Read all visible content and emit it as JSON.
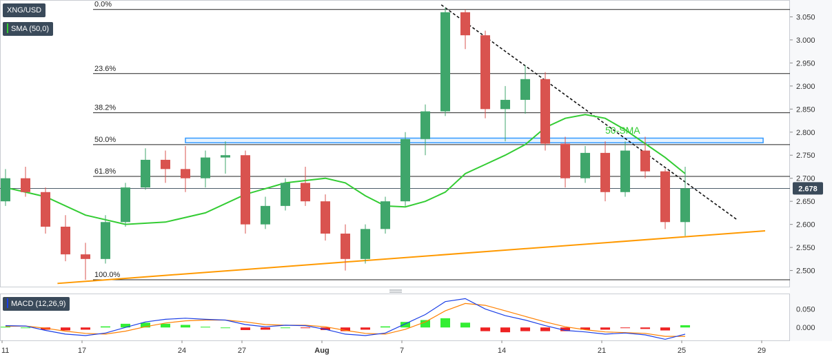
{
  "chart_data": {
    "type": "candlestick",
    "title": "",
    "symbol": "XNG/USD",
    "indicator_label": "SMA (50,0)",
    "macd_label": "MACD (12,26,9)",
    "current_price_label": "2.678",
    "current_price": 2.678,
    "sma_annotation": "50-SMA",
    "colors": {
      "up": "#3fa66b",
      "down": "#d9534f",
      "sma": "#33cc33",
      "support": "#ff9900",
      "resistance_line": "#111111",
      "zone": "#3399ff",
      "macd_line": "#1a3ee6",
      "signal_line": "#ff8000",
      "hist_pos": "#33ee33",
      "hist_neg": "#ee2222"
    },
    "price_axis": {
      "range": [
        2.465,
        3.085
      ],
      "ticks": [
        "3.050",
        "3.000",
        "2.950",
        "2.900",
        "2.850",
        "2.800",
        "2.750",
        "2.700",
        "2.650",
        "2.600",
        "2.550",
        "2.500"
      ]
    },
    "macd_axis": {
      "range": [
        -0.035,
        0.09
      ],
      "ticks": [
        "0.050",
        "0.000"
      ]
    },
    "x_axis": {
      "ticks": [
        {
          "label": "11",
          "x": 0
        },
        {
          "label": "17",
          "x": 4
        },
        {
          "label": "24",
          "x": 9
        },
        {
          "label": "27",
          "x": 12
        },
        {
          "label": "Aug",
          "x": 16
        },
        {
          "label": "7",
          "x": 20
        },
        {
          "label": "14",
          "x": 25
        },
        {
          "label": "21",
          "x": 30
        },
        {
          "label": "25",
          "x": 34
        },
        {
          "label": "29",
          "x": 38
        }
      ]
    },
    "fibonacci": [
      {
        "label": "0.0%",
        "value": 3.066
      },
      {
        "label": "23.6%",
        "value": 2.927
      },
      {
        "label": "38.2%",
        "value": 2.842
      },
      {
        "label": "50.0%",
        "value": 2.773
      },
      {
        "label": "61.8%",
        "value": 2.704
      },
      {
        "label": "100.0%",
        "value": 2.48
      }
    ],
    "zone": {
      "from": 2.777,
      "to": 2.787,
      "x_start": 9,
      "x_end": 37.9
    },
    "resistance_line": [
      {
        "x": 21.8,
        "y": 3.076
      },
      {
        "x": 36.6,
        "y": 2.61
      }
    ],
    "support_line": [
      {
        "x": 2.6,
        "y": 2.472
      },
      {
        "x": 38,
        "y": 2.586
      }
    ],
    "candles": [
      {
        "x": 0,
        "o": 2.65,
        "h": 2.72,
        "l": 2.64,
        "c": 2.7
      },
      {
        "x": 1,
        "o": 2.7,
        "h": 2.725,
        "l": 2.66,
        "c": 2.67
      },
      {
        "x": 2,
        "o": 2.67,
        "h": 2.68,
        "l": 2.58,
        "c": 2.595
      },
      {
        "x": 3,
        "o": 2.595,
        "h": 2.62,
        "l": 2.52,
        "c": 2.535
      },
      {
        "x": 4,
        "o": 2.535,
        "h": 2.56,
        "l": 2.48,
        "c": 2.525
      },
      {
        "x": 5,
        "o": 2.525,
        "h": 2.62,
        "l": 2.515,
        "c": 2.605
      },
      {
        "x": 6,
        "o": 2.605,
        "h": 2.69,
        "l": 2.595,
        "c": 2.68
      },
      {
        "x": 7,
        "o": 2.68,
        "h": 2.765,
        "l": 2.675,
        "c": 2.74
      },
      {
        "x": 8,
        "o": 2.74,
        "h": 2.76,
        "l": 2.69,
        "c": 2.72
      },
      {
        "x": 9,
        "o": 2.72,
        "h": 2.77,
        "l": 2.67,
        "c": 2.7
      },
      {
        "x": 10,
        "o": 2.7,
        "h": 2.76,
        "l": 2.68,
        "c": 2.745
      },
      {
        "x": 11,
        "o": 2.745,
        "h": 2.78,
        "l": 2.71,
        "c": 2.75
      },
      {
        "x": 12,
        "o": 2.75,
        "h": 2.76,
        "l": 2.58,
        "c": 2.6
      },
      {
        "x": 13,
        "o": 2.6,
        "h": 2.66,
        "l": 2.59,
        "c": 2.64
      },
      {
        "x": 14,
        "o": 2.64,
        "h": 2.7,
        "l": 2.63,
        "c": 2.69
      },
      {
        "x": 15,
        "o": 2.69,
        "h": 2.725,
        "l": 2.64,
        "c": 2.65
      },
      {
        "x": 16,
        "o": 2.65,
        "h": 2.665,
        "l": 2.565,
        "c": 2.58
      },
      {
        "x": 17,
        "o": 2.58,
        "h": 2.6,
        "l": 2.5,
        "c": 2.525
      },
      {
        "x": 18,
        "o": 2.525,
        "h": 2.6,
        "l": 2.515,
        "c": 2.59
      },
      {
        "x": 19,
        "o": 2.59,
        "h": 2.66,
        "l": 2.58,
        "c": 2.65
      },
      {
        "x": 20,
        "o": 2.65,
        "h": 2.8,
        "l": 2.64,
        "c": 2.785
      },
      {
        "x": 21,
        "o": 2.785,
        "h": 2.86,
        "l": 2.75,
        "c": 2.845
      },
      {
        "x": 22,
        "o": 2.845,
        "h": 3.07,
        "l": 2.835,
        "c": 3.06
      },
      {
        "x": 23,
        "o": 3.06,
        "h": 3.066,
        "l": 2.98,
        "c": 3.01
      },
      {
        "x": 24,
        "o": 3.01,
        "h": 3.02,
        "l": 2.83,
        "c": 2.85
      },
      {
        "x": 25,
        "o": 2.85,
        "h": 2.9,
        "l": 2.78,
        "c": 2.87
      },
      {
        "x": 26,
        "o": 2.87,
        "h": 2.945,
        "l": 2.84,
        "c": 2.915
      },
      {
        "x": 27,
        "o": 2.915,
        "h": 2.93,
        "l": 2.76,
        "c": 2.775
      },
      {
        "x": 28,
        "o": 2.775,
        "h": 2.79,
        "l": 2.68,
        "c": 2.7
      },
      {
        "x": 29,
        "o": 2.7,
        "h": 2.77,
        "l": 2.69,
        "c": 2.755
      },
      {
        "x": 30,
        "o": 2.755,
        "h": 2.78,
        "l": 2.65,
        "c": 2.67
      },
      {
        "x": 31,
        "o": 2.67,
        "h": 2.78,
        "l": 2.66,
        "c": 2.76
      },
      {
        "x": 32,
        "o": 2.76,
        "h": 2.79,
        "l": 2.7,
        "c": 2.715
      },
      {
        "x": 33,
        "o": 2.715,
        "h": 2.72,
        "l": 2.59,
        "c": 2.605
      },
      {
        "x": 34,
        "o": 2.605,
        "h": 2.725,
        "l": 2.575,
        "c": 2.678
      }
    ],
    "sma": [
      {
        "x": 0,
        "y": 2.68
      },
      {
        "x": 2,
        "y": 2.66
      },
      {
        "x": 4,
        "y": 2.62
      },
      {
        "x": 6,
        "y": 2.6
      },
      {
        "x": 8,
        "y": 2.605
      },
      {
        "x": 10,
        "y": 2.625
      },
      {
        "x": 12,
        "y": 2.665
      },
      {
        "x": 14,
        "y": 2.69
      },
      {
        "x": 16,
        "y": 2.7
      },
      {
        "x": 17,
        "y": 2.69
      },
      {
        "x": 18,
        "y": 2.662
      },
      {
        "x": 19,
        "y": 2.64
      },
      {
        "x": 20,
        "y": 2.638
      },
      {
        "x": 21,
        "y": 2.65
      },
      {
        "x": 22,
        "y": 2.67
      },
      {
        "x": 23,
        "y": 2.71
      },
      {
        "x": 24,
        "y": 2.73
      },
      {
        "x": 25,
        "y": 2.75
      },
      {
        "x": 26,
        "y": 2.773
      },
      {
        "x": 27,
        "y": 2.81
      },
      {
        "x": 28,
        "y": 2.83
      },
      {
        "x": 29,
        "y": 2.838
      },
      {
        "x": 30,
        "y": 2.83
      },
      {
        "x": 31,
        "y": 2.805
      },
      {
        "x": 32,
        "y": 2.775
      },
      {
        "x": 33,
        "y": 2.745
      },
      {
        "x": 34,
        "y": 2.71
      }
    ],
    "macd": [
      {
        "x": 0,
        "y": 0.005
      },
      {
        "x": 1,
        "y": 0.004
      },
      {
        "x": 2,
        "y": -0.008
      },
      {
        "x": 3,
        "y": -0.018
      },
      {
        "x": 4,
        "y": -0.022
      },
      {
        "x": 5,
        "y": -0.015
      },
      {
        "x": 6,
        "y": 0.0
      },
      {
        "x": 7,
        "y": 0.015
      },
      {
        "x": 8,
        "y": 0.022
      },
      {
        "x": 9,
        "y": 0.025
      },
      {
        "x": 10,
        "y": 0.022
      },
      {
        "x": 11,
        "y": 0.02
      },
      {
        "x": 12,
        "y": 0.008
      },
      {
        "x": 13,
        "y": 0.002
      },
      {
        "x": 14,
        "y": 0.006
      },
      {
        "x": 15,
        "y": 0.005
      },
      {
        "x": 16,
        "y": -0.005
      },
      {
        "x": 17,
        "y": -0.018
      },
      {
        "x": 18,
        "y": -0.022
      },
      {
        "x": 19,
        "y": -0.015
      },
      {
        "x": 20,
        "y": 0.01
      },
      {
        "x": 21,
        "y": 0.035
      },
      {
        "x": 22,
        "y": 0.07
      },
      {
        "x": 23,
        "y": 0.078
      },
      {
        "x": 24,
        "y": 0.05
      },
      {
        "x": 25,
        "y": 0.032
      },
      {
        "x": 26,
        "y": 0.02
      },
      {
        "x": 27,
        "y": 0.005
      },
      {
        "x": 28,
        "y": -0.008
      },
      {
        "x": 29,
        "y": -0.012
      },
      {
        "x": 30,
        "y": -0.018
      },
      {
        "x": 31,
        "y": -0.015
      },
      {
        "x": 32,
        "y": -0.02
      },
      {
        "x": 33,
        "y": -0.032
      },
      {
        "x": 34,
        "y": -0.018
      }
    ],
    "signal": [
      {
        "x": 0,
        "y": 0.003
      },
      {
        "x": 1,
        "y": 0.004
      },
      {
        "x": 2,
        "y": -0.002
      },
      {
        "x": 3,
        "y": -0.01
      },
      {
        "x": 4,
        "y": -0.016
      },
      {
        "x": 5,
        "y": -0.018
      },
      {
        "x": 6,
        "y": -0.01
      },
      {
        "x": 7,
        "y": 0.002
      },
      {
        "x": 8,
        "y": 0.012
      },
      {
        "x": 9,
        "y": 0.018
      },
      {
        "x": 10,
        "y": 0.02
      },
      {
        "x": 11,
        "y": 0.02
      },
      {
        "x": 12,
        "y": 0.015
      },
      {
        "x": 13,
        "y": 0.008
      },
      {
        "x": 14,
        "y": 0.006
      },
      {
        "x": 15,
        "y": 0.006
      },
      {
        "x": 16,
        "y": 0.002
      },
      {
        "x": 17,
        "y": -0.008
      },
      {
        "x": 18,
        "y": -0.016
      },
      {
        "x": 19,
        "y": -0.018
      },
      {
        "x": 20,
        "y": -0.005
      },
      {
        "x": 21,
        "y": 0.015
      },
      {
        "x": 22,
        "y": 0.045
      },
      {
        "x": 23,
        "y": 0.065
      },
      {
        "x": 24,
        "y": 0.06
      },
      {
        "x": 25,
        "y": 0.045
      },
      {
        "x": 26,
        "y": 0.03
      },
      {
        "x": 27,
        "y": 0.015
      },
      {
        "x": 28,
        "y": 0.002
      },
      {
        "x": 29,
        "y": -0.006
      },
      {
        "x": 30,
        "y": -0.012
      },
      {
        "x": 31,
        "y": -0.014
      },
      {
        "x": 32,
        "y": -0.016
      },
      {
        "x": 33,
        "y": -0.024
      },
      {
        "x": 34,
        "y": -0.024
      }
    ]
  }
}
